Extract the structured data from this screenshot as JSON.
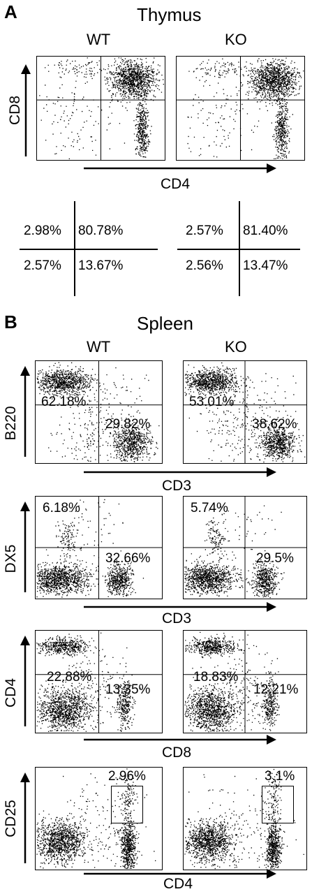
{
  "panel_a": {
    "letter": "A",
    "title": "Thymus",
    "wt": "WT",
    "ko": "KO",
    "y_axis": "CD8",
    "x_axis": "CD4",
    "quadrant_table": {
      "wt": {
        "ul": "2.98%",
        "ur": "80.78%",
        "ll": "2.57%",
        "lr": "13.67%"
      },
      "ko": {
        "ul": "2.57%",
        "ur": "81.40%",
        "ll": "2.56%",
        "lr": "13.47%"
      }
    }
  },
  "panel_b": {
    "letter": "B",
    "title": "Spleen",
    "wt": "WT",
    "ko": "KO",
    "rows": [
      {
        "y_axis": "B220",
        "x_axis": "CD3",
        "wt": {
          "p1": "62.18%",
          "p2": "29.82%"
        },
        "ko": {
          "p1": "53.01%",
          "p2": "38.62%"
        }
      },
      {
        "y_axis": "DX5",
        "x_axis": "CD3",
        "wt": {
          "p1": "6.18%",
          "p2": "32.66%"
        },
        "ko": {
          "p1": "5.74%",
          "p2": "29.5%"
        }
      },
      {
        "y_axis": "CD4",
        "x_axis": "CD8",
        "wt": {
          "p1": "22.88%",
          "p2": "13.35%"
        },
        "ko": {
          "p1": "18.83%",
          "p2": "12.21%"
        }
      },
      {
        "y_axis": "CD25",
        "x_axis": "CD4",
        "wt": {
          "p1": "2.96%"
        },
        "ko": {
          "p1": "3.1%"
        }
      }
    ]
  }
}
